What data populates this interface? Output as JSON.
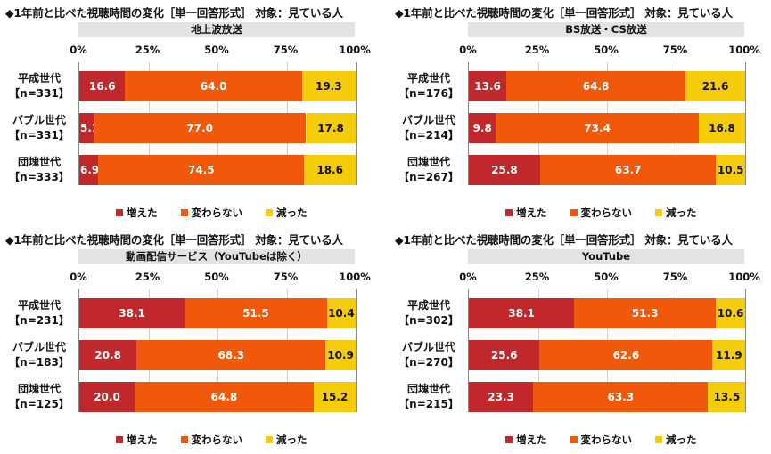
{
  "legend": [
    "増えた",
    "変わらない",
    "減った"
  ],
  "colors": {
    "inc": "#c0282b",
    "same": "#f0580c",
    "dec": "#f5cc0a"
  },
  "chart_data": [
    {
      "type": "bar",
      "orientation": "horizontal-stacked-100",
      "title": "◆1年前と比べた視聴時間の変化［単一回答形式］ 対象：見ている人",
      "subtitle": "地上波放送",
      "x_ticks": [
        "0%",
        "25%",
        "50%",
        "75%",
        "100%"
      ],
      "xlim": [
        0,
        100
      ],
      "categories": [
        "平成世代",
        "バブル世代",
        "団塊世代"
      ],
      "n_labels": [
        "【n=331】",
        "【n=331】",
        "【n=333】"
      ],
      "series": [
        {
          "name": "増えた",
          "values": [
            16.6,
            5.1,
            6.9
          ]
        },
        {
          "name": "変わらない",
          "values": [
            64.0,
            77.0,
            74.5
          ]
        },
        {
          "name": "減った",
          "values": [
            19.3,
            17.8,
            18.6
          ]
        }
      ]
    },
    {
      "type": "bar",
      "orientation": "horizontal-stacked-100",
      "title": "◆1年前と比べた視聴時間の変化［単一回答形式］ 対象：見ている人",
      "subtitle": "BS放送・CS放送",
      "x_ticks": [
        "0%",
        "25%",
        "50%",
        "75%",
        "100%"
      ],
      "xlim": [
        0,
        100
      ],
      "categories": [
        "平成世代",
        "バブル世代",
        "団塊世代"
      ],
      "n_labels": [
        "【n=176】",
        "【n=214】",
        "【n=267】"
      ],
      "series": [
        {
          "name": "増えた",
          "values": [
            13.6,
            9.8,
            25.8
          ]
        },
        {
          "name": "変わらない",
          "values": [
            64.8,
            73.4,
            63.7
          ]
        },
        {
          "name": "減った",
          "values": [
            21.6,
            16.8,
            10.5
          ]
        }
      ]
    },
    {
      "type": "bar",
      "orientation": "horizontal-stacked-100",
      "title": "◆1年前と比べた視聴時間の変化［単一回答形式］ 対象：見ている人",
      "subtitle": "動画配信サービス（YouTubeは除く）",
      "x_ticks": [
        "0%",
        "25%",
        "50%",
        "75%",
        "100%"
      ],
      "xlim": [
        0,
        100
      ],
      "categories": [
        "平成世代",
        "バブル世代",
        "団塊世代"
      ],
      "n_labels": [
        "【n=231】",
        "【n=183】",
        "【n=125】"
      ],
      "series": [
        {
          "name": "増えた",
          "values": [
            38.1,
            20.8,
            20.0
          ]
        },
        {
          "name": "変わらない",
          "values": [
            51.5,
            68.3,
            64.8
          ]
        },
        {
          "name": "減った",
          "values": [
            10.4,
            10.9,
            15.2
          ]
        }
      ]
    },
    {
      "type": "bar",
      "orientation": "horizontal-stacked-100",
      "title": "◆1年前と比べた視聴時間の変化［単一回答形式］ 対象：見ている人",
      "subtitle": "YouTube",
      "x_ticks": [
        "0%",
        "25%",
        "50%",
        "75%",
        "100%"
      ],
      "xlim": [
        0,
        100
      ],
      "categories": [
        "平成世代",
        "バブル世代",
        "団塊世代"
      ],
      "n_labels": [
        "【n=302】",
        "【n=270】",
        "【n=215】"
      ],
      "series": [
        {
          "name": "増えた",
          "values": [
            38.1,
            25.6,
            23.3
          ]
        },
        {
          "name": "変わらない",
          "values": [
            51.3,
            62.6,
            63.3
          ]
        },
        {
          "name": "減った",
          "values": [
            10.6,
            11.9,
            13.5
          ]
        }
      ]
    }
  ]
}
